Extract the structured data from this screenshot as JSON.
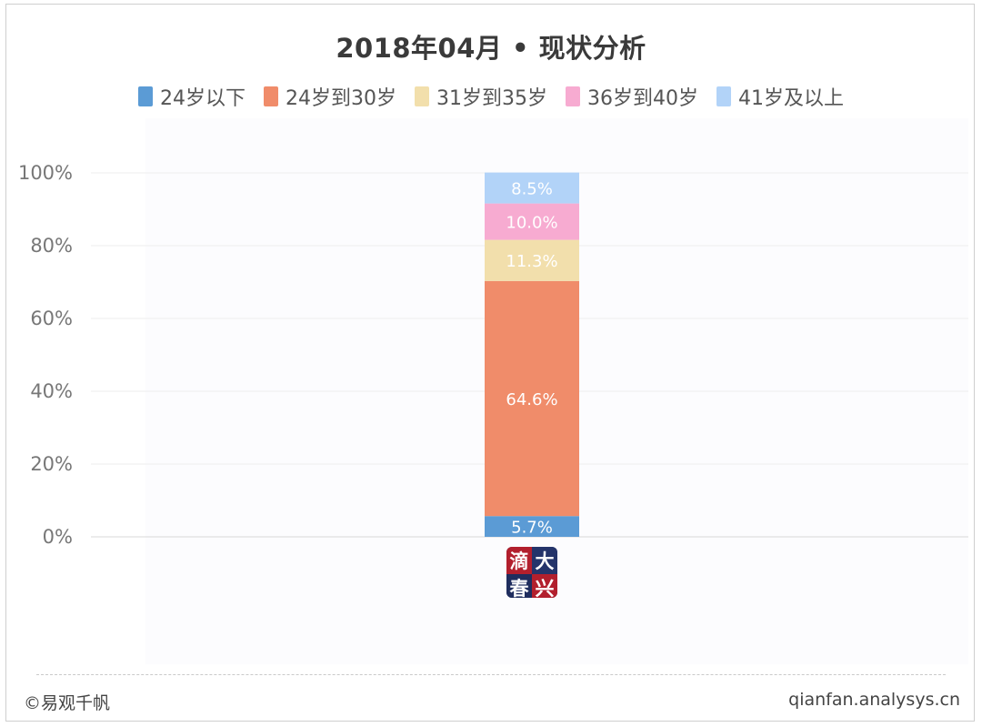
{
  "chart_data": {
    "type": "bar",
    "stacked": true,
    "title": "2018年04月 • 现状分析",
    "categories": [
      ""
    ],
    "ylim": [
      0,
      100
    ],
    "yticks": [
      "0%",
      "20%",
      "40%",
      "60%",
      "80%",
      "100%"
    ],
    "grid": true,
    "legend_position": "top",
    "series": [
      {
        "name": "24岁以下",
        "values": [
          5.7
        ],
        "label": "5.7%",
        "color": "#5b9bd5"
      },
      {
        "name": "24岁到30岁",
        "values": [
          64.6
        ],
        "label": "64.6%",
        "color": "#f08c6a"
      },
      {
        "name": "31岁到35岁",
        "values": [
          11.3
        ],
        "label": "11.3%",
        "color": "#f2dfac"
      },
      {
        "name": "36岁到40岁",
        "values": [
          10.0
        ],
        "label": "10.0%",
        "color": "#f7abd1"
      },
      {
        "name": "41岁及以上",
        "values": [
          8.5
        ],
        "label": "8.5%",
        "color": "#b2d3f8"
      }
    ]
  },
  "logo": {
    "chars": [
      "滴",
      "大",
      "春",
      "兴"
    ]
  },
  "footer": {
    "left": "©易观千帆",
    "right": "qianfan.analysys.cn"
  }
}
